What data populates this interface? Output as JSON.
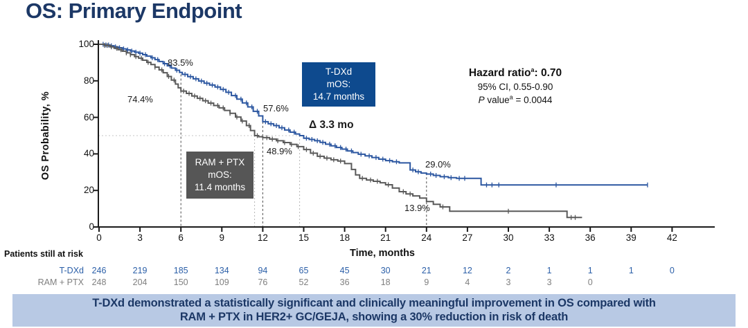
{
  "title": "OS: Primary Endpoint",
  "colors": {
    "navy": "#1c3866",
    "tdxd_curve": "#2b56a0",
    "ram_curve": "#595959",
    "tdxd_box_bg": "#0e4a8e",
    "ram_box_bg": "#565656",
    "banner_bg": "#b8c9e4",
    "risk_tdxd_text": "#2b5fa8",
    "risk_ram_text": "#7f7f7f"
  },
  "annotations": {
    "pct_tdxd_6mo": "83.5%",
    "pct_ram_6mo": "74.4%",
    "pct_tdxd_12mo": "57.6%",
    "pct_ram_12mo": "48.9%",
    "pct_tdxd_24mo": "29.0%",
    "pct_ram_24mo": "13.9%",
    "delta": "Δ 3.3 mo"
  },
  "boxes": {
    "tdxd": {
      "line1": "T-DXd",
      "line2": "mOS:",
      "line3": "14.7 months"
    },
    "ram": {
      "line1": "RAM + PTX",
      "line2": "mOS:",
      "line3": "11.4 months"
    }
  },
  "stats": {
    "hr_label": "Hazard ratio",
    "hr_sup": "a",
    "hr_value": ": 0.70",
    "ci": "95% CI, 0.55-0.90",
    "p_italic": "P",
    "p_label": " value",
    "p_sup": "a",
    "p_value": " = 0.0044"
  },
  "risk_table": {
    "header": "Patients still at risk",
    "rows": [
      {
        "name": "T-DXd",
        "months": [
          0,
          3,
          6,
          9,
          12,
          15,
          18,
          21,
          24,
          27,
          30,
          33,
          36,
          39,
          42
        ],
        "counts": [
          246,
          219,
          185,
          134,
          94,
          65,
          45,
          30,
          21,
          12,
          2,
          1,
          1,
          1,
          0
        ]
      },
      {
        "name": "RAM + PTX",
        "months": [
          0,
          3,
          6,
          9,
          12,
          15,
          18,
          21,
          24,
          27,
          30,
          33,
          36
        ],
        "counts": [
          248,
          204,
          150,
          109,
          76,
          52,
          36,
          18,
          9,
          4,
          3,
          3,
          0
        ]
      }
    ]
  },
  "banner": {
    "line1": "T-DXd demonstrated a statistically significant and clinically meaningful improvement in OS compared with",
    "line2": "RAM + PTX in HER2+ GC/GEJA, showing a 30% reduction in risk of death"
  },
  "chart_data": {
    "type": "line",
    "subtype": "kaplan_meier_step",
    "title": "OS: Primary Endpoint",
    "xlabel": "Time, months",
    "ylabel": "OS Probability, %",
    "xlim": [
      0,
      45
    ],
    "ylim": [
      0,
      100
    ],
    "xticks": [
      0,
      3,
      6,
      9,
      12,
      15,
      18,
      21,
      24,
      27,
      30,
      33,
      36,
      39,
      42
    ],
    "yticks": [
      0,
      20,
      40,
      60,
      80,
      100
    ],
    "grid": false,
    "legend_position": "none",
    "series": [
      {
        "name": "T-DXd",
        "color": "#2b56a0",
        "median_months": 14.7,
        "os_rate_6mo": 83.5,
        "os_rate_12mo": 57.6,
        "os_rate_24mo": 29.0,
        "steps": [
          [
            0,
            100
          ],
          [
            0.4,
            99.6
          ],
          [
            0.8,
            99.2
          ],
          [
            1.1,
            98.6
          ],
          [
            1.4,
            98.1
          ],
          [
            1.7,
            97.5
          ],
          [
            2.0,
            96.9
          ],
          [
            2.3,
            96.3
          ],
          [
            2.6,
            95.7
          ],
          [
            2.9,
            95.1
          ],
          [
            3.2,
            94.3
          ],
          [
            3.5,
            93.5
          ],
          [
            3.8,
            92.6
          ],
          [
            4.1,
            91.6
          ],
          [
            4.4,
            90.6
          ],
          [
            4.7,
            89.4
          ],
          [
            5.0,
            88.2
          ],
          [
            5.3,
            87.0
          ],
          [
            5.6,
            85.8
          ],
          [
            5.9,
            84.6
          ],
          [
            6.1,
            83.5
          ],
          [
            6.5,
            82.3
          ],
          [
            6.9,
            81.1
          ],
          [
            7.3,
            79.9
          ],
          [
            7.7,
            78.7
          ],
          [
            8.1,
            77.7
          ],
          [
            8.5,
            76.6
          ],
          [
            8.9,
            75.3
          ],
          [
            9.3,
            73.7
          ],
          [
            9.7,
            71.9
          ],
          [
            10.1,
            70.0
          ],
          [
            10.5,
            67.9
          ],
          [
            10.9,
            65.7
          ],
          [
            11.3,
            63.3
          ],
          [
            11.7,
            60.8
          ],
          [
            12.0,
            57.6
          ],
          [
            12.4,
            56.5
          ],
          [
            12.8,
            55.5
          ],
          [
            13.2,
            54.3
          ],
          [
            13.6,
            53.1
          ],
          [
            14.0,
            51.9
          ],
          [
            14.4,
            50.9
          ],
          [
            14.7,
            50.0
          ],
          [
            15.0,
            48.6
          ],
          [
            15.4,
            47.9
          ],
          [
            15.8,
            47.2
          ],
          [
            16.2,
            46.3
          ],
          [
            16.6,
            45.3
          ],
          [
            17.0,
            44.4
          ],
          [
            17.4,
            43.5
          ],
          [
            17.8,
            42.6
          ],
          [
            18.2,
            41.6
          ],
          [
            18.6,
            40.7
          ],
          [
            19.0,
            39.8
          ],
          [
            19.5,
            38.9
          ],
          [
            20.0,
            38.0
          ],
          [
            20.5,
            37.1
          ],
          [
            21.0,
            36.3
          ],
          [
            21.5,
            35.7
          ],
          [
            22.0,
            35.1
          ],
          [
            22.8,
            31.2
          ],
          [
            23.2,
            30.2
          ],
          [
            23.6,
            29.5
          ],
          [
            24.0,
            29.0
          ],
          [
            24.5,
            28.2
          ],
          [
            25.0,
            27.5
          ],
          [
            25.6,
            27.0
          ],
          [
            26.2,
            26.6
          ],
          [
            28.0,
            23.0
          ],
          [
            40.2,
            23.0
          ]
        ],
        "censor_times": [
          0.3,
          0.5,
          0.7,
          0.9,
          1.2,
          1.5,
          1.8,
          2.1,
          2.4,
          2.7,
          3.0,
          3.4,
          3.9,
          4.3,
          4.8,
          5.2,
          5.7,
          6.3,
          6.7,
          7.1,
          7.5,
          7.9,
          8.3,
          8.7,
          9.1,
          9.5,
          10.0,
          10.4,
          10.8,
          11.2,
          11.6,
          12.2,
          12.6,
          13.0,
          13.4,
          13.9,
          14.3,
          15.2,
          15.6,
          16.0,
          16.4,
          16.9,
          17.3,
          17.7,
          18.1,
          18.5,
          19.2,
          19.8,
          20.3,
          20.8,
          21.3,
          21.8,
          23.0,
          23.4,
          24.3,
          24.7,
          25.3,
          25.8,
          26.4,
          26.8,
          28.4,
          28.8,
          29.3,
          33.5,
          40.2
        ]
      },
      {
        "name": "RAM + PTX",
        "color": "#595959",
        "median_months": 11.4,
        "os_rate_6mo": 74.4,
        "os_rate_12mo": 48.9,
        "os_rate_24mo": 13.9,
        "steps": [
          [
            0,
            100
          ],
          [
            0.4,
            99.4
          ],
          [
            0.8,
            98.6
          ],
          [
            1.1,
            97.8
          ],
          [
            1.4,
            97.0
          ],
          [
            1.7,
            96.2
          ],
          [
            2.0,
            95.3
          ],
          [
            2.3,
            94.3
          ],
          [
            2.6,
            93.3
          ],
          [
            2.9,
            92.4
          ],
          [
            3.2,
            91.3
          ],
          [
            3.5,
            90.1
          ],
          [
            3.8,
            88.9
          ],
          [
            4.1,
            87.5
          ],
          [
            4.4,
            86.0
          ],
          [
            4.7,
            84.4
          ],
          [
            5.0,
            82.4
          ],
          [
            5.3,
            80.4
          ],
          [
            5.6,
            78.2
          ],
          [
            5.8,
            76.2
          ],
          [
            6.0,
            74.4
          ],
          [
            6.4,
            73.1
          ],
          [
            6.8,
            71.7
          ],
          [
            7.2,
            70.4
          ],
          [
            7.6,
            69.1
          ],
          [
            8.0,
            67.8
          ],
          [
            8.4,
            66.5
          ],
          [
            8.8,
            65.2
          ],
          [
            9.2,
            63.8
          ],
          [
            9.6,
            62.2
          ],
          [
            10.0,
            60.2
          ],
          [
            10.4,
            58.0
          ],
          [
            10.8,
            55.5
          ],
          [
            11.1,
            52.8
          ],
          [
            11.4,
            50.0
          ],
          [
            11.7,
            49.4
          ],
          [
            12.0,
            48.9
          ],
          [
            12.5,
            48.1
          ],
          [
            13.0,
            47.2
          ],
          [
            13.5,
            46.2
          ],
          [
            14.0,
            45.2
          ],
          [
            14.5,
            44.0
          ],
          [
            15.0,
            42.4
          ],
          [
            15.5,
            40.4
          ],
          [
            16.0,
            38.7
          ],
          [
            16.5,
            37.7
          ],
          [
            17.0,
            36.8
          ],
          [
            17.5,
            36.1
          ],
          [
            18.0,
            34.7
          ],
          [
            18.5,
            31.5
          ],
          [
            18.8,
            28.5
          ],
          [
            19.1,
            26.6
          ],
          [
            19.6,
            25.7
          ],
          [
            20.1,
            25.0
          ],
          [
            20.6,
            24.2
          ],
          [
            21.0,
            23.1
          ],
          [
            21.5,
            21.3
          ],
          [
            22.0,
            19.3
          ],
          [
            22.5,
            18.1
          ],
          [
            23.0,
            17.0
          ],
          [
            23.5,
            15.8
          ],
          [
            24.0,
            13.9
          ],
          [
            24.5,
            12.4
          ],
          [
            25.0,
            11.0
          ],
          [
            25.7,
            8.6
          ],
          [
            34.3,
            5.2
          ],
          [
            35.4,
            5.2
          ]
        ],
        "censor_times": [
          0.4,
          0.6,
          0.9,
          1.3,
          1.6,
          2.0,
          2.3,
          2.7,
          3.1,
          3.6,
          4.1,
          4.6,
          5.1,
          5.5,
          6.2,
          6.6,
          7.0,
          7.4,
          7.8,
          8.2,
          8.7,
          9.1,
          9.6,
          10.1,
          10.5,
          11.0,
          11.6,
          12.3,
          12.7,
          13.1,
          13.6,
          14.1,
          14.6,
          15.2,
          15.7,
          16.2,
          16.7,
          17.2,
          17.7,
          19.3,
          19.9,
          20.4,
          21.2,
          22.3,
          22.8,
          25.2,
          30.0,
          34.6,
          34.9
        ]
      }
    ],
    "reference_lines": {
      "vertical_dashed": [
        {
          "month": 6,
          "to_pct": 83.5
        },
        {
          "month": 12,
          "to_pct": 57.6
        },
        {
          "month": 24,
          "to_pct": 29.5
        }
      ],
      "median_dotted": [
        {
          "month": 11.4,
          "to_pct": 50
        },
        {
          "month": 14.7,
          "to_pct": 50
        }
      ],
      "horizontal_dotted": {
        "pct": 50,
        "from_month": 0,
        "to_month": 14.7
      }
    }
  }
}
